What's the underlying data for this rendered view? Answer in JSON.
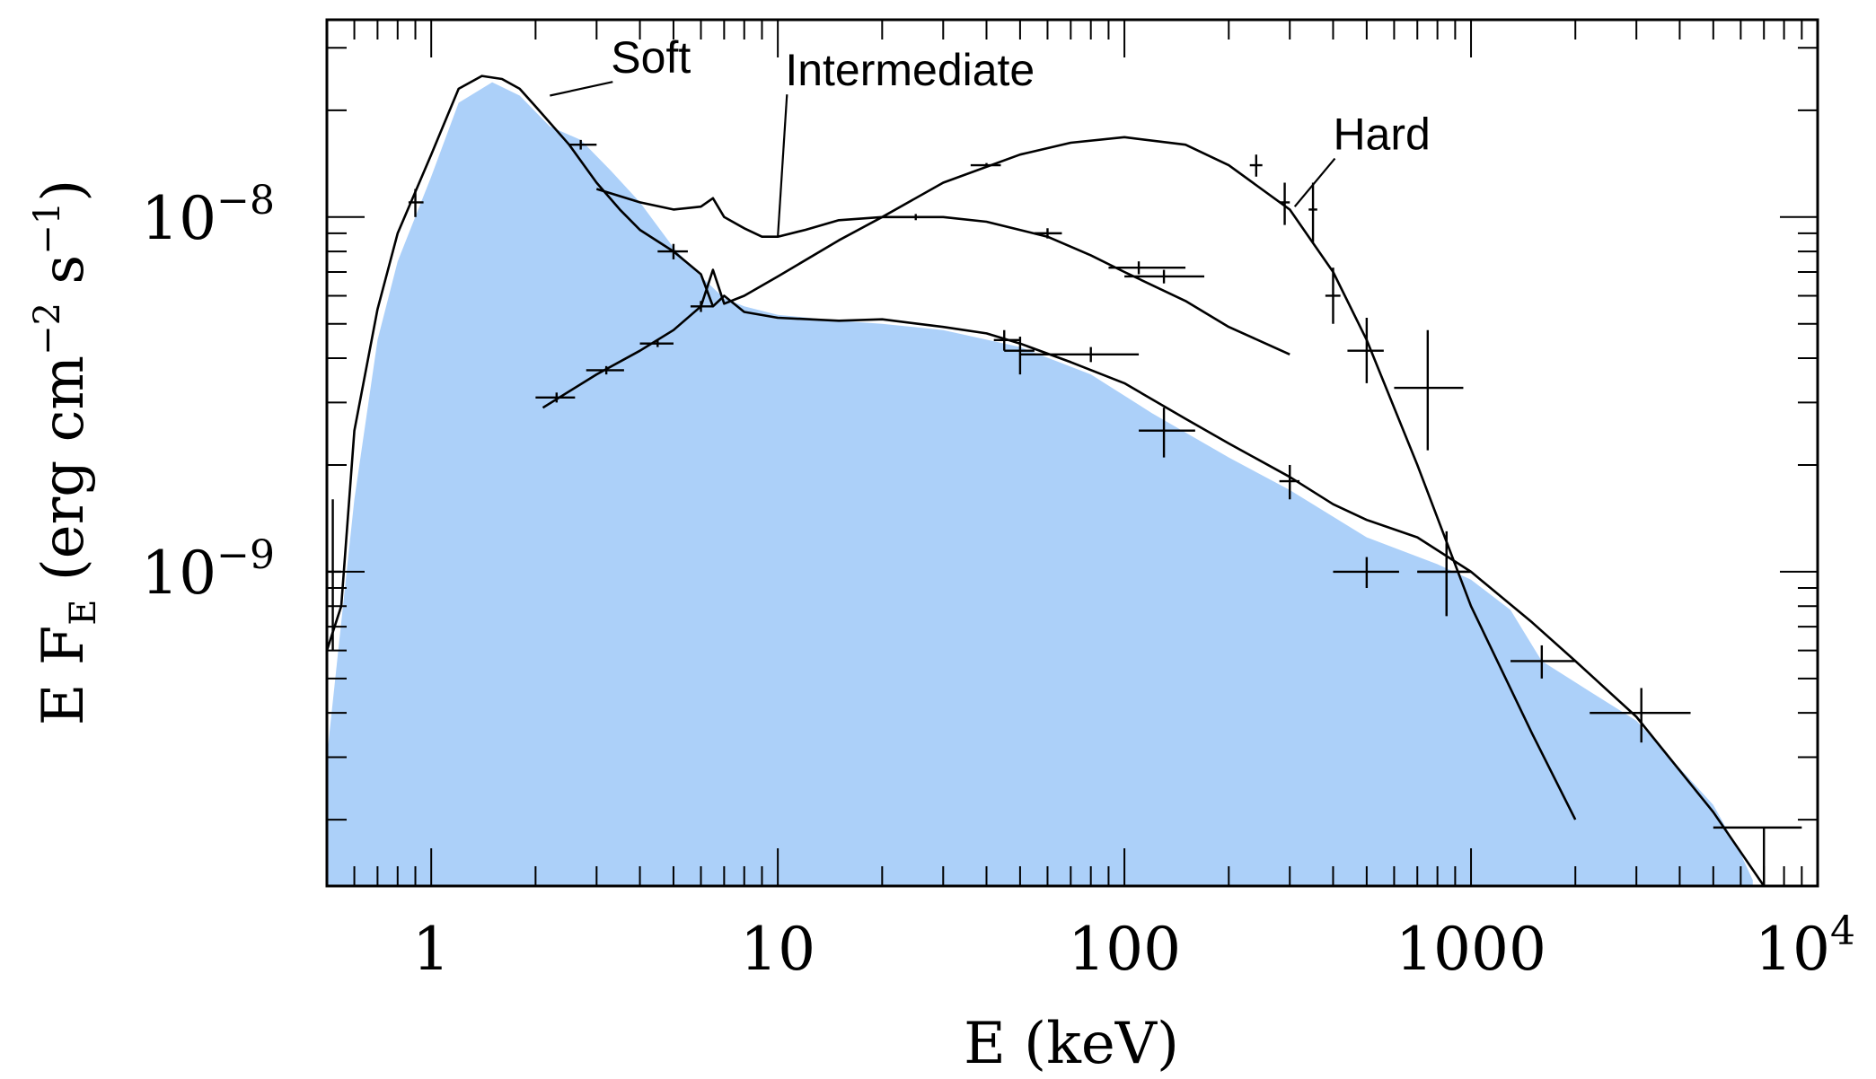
{
  "chart_data": {
    "type": "line",
    "xlabel": "E (keV)",
    "ylabel": "E F_E (erg cm^-2 s^-1)",
    "x_scale": "log",
    "y_scale": "log",
    "xlim": [
      0.5,
      10000
    ],
    "ylim": [
      1.3e-10,
      3.6e-08
    ],
    "grid": false,
    "x_ticks": [
      {
        "value": 1,
        "label": "1"
      },
      {
        "value": 10,
        "label": "10"
      },
      {
        "value": 100,
        "label": "100"
      },
      {
        "value": 1000,
        "label": "1000"
      },
      {
        "value": 10000,
        "base": "10",
        "exp": "4"
      }
    ],
    "y_ticks": [
      {
        "value": 1e-09,
        "base": "10",
        "exp": "−9"
      },
      {
        "value": 1e-08,
        "base": "10",
        "exp": "−8"
      }
    ],
    "fill_color": "#acd0f9",
    "line_color": "#000000",
    "reference_band": {
      "x": [
        0.5,
        0.6,
        0.7,
        0.8,
        1.0,
        1.2,
        1.5,
        1.8,
        2.2,
        2.7,
        3.3,
        4.0,
        5.0,
        6.0,
        7.0,
        8.0,
        10,
        15,
        20,
        30,
        50,
        80,
        120,
        200,
        300,
        500,
        800,
        1000,
        1300,
        1600,
        2200,
        3000,
        5000,
        6000,
        6500
      ],
      "y": [
        3e-10,
        1.6e-09,
        4.5e-09,
        7.5e-09,
        1.3e-08,
        2.1e-08,
        2.4e-08,
        2.2e-08,
        1.8e-08,
        1.65e-08,
        1.35e-08,
        1.1e-08,
        8.2e-09,
        6.8e-09,
        5.9e-09,
        5.6e-09,
        5.3e-09,
        5.1e-09,
        5e-09,
        4.8e-09,
        4.3e-09,
        3.6e-09,
        2.8e-09,
        2.1e-09,
        1.7e-09,
        1.25e-09,
        1.05e-09,
        9.5e-10,
        7.8e-10,
        5.6e-10,
        4.6e-10,
        3.8e-10,
        2.2e-10,
        1.6e-10,
        1.35e-10
      ]
    },
    "series": [
      {
        "name": "Soft",
        "model": {
          "x": [
            0.5,
            0.55,
            0.6,
            0.7,
            0.8,
            1.0,
            1.2,
            1.4,
            1.6,
            1.8,
            2.0,
            2.5,
            3.0,
            3.5,
            4.0,
            5.0,
            6.0,
            6.5,
            7.0,
            8.0,
            10,
            15,
            20,
            30,
            40,
            50,
            70,
            100,
            150,
            200,
            300,
            400,
            500,
            700,
            1000,
            1500,
            2000,
            3000,
            5000,
            7000
          ],
          "y": [
            6e-10,
            8e-10,
            2.5e-09,
            5.5e-09,
            9e-09,
            1.5e-08,
            2.3e-08,
            2.5e-08,
            2.45e-08,
            2.3e-08,
            2.05e-08,
            1.6e-08,
            1.25e-08,
            1.05e-08,
            9.2e-09,
            8e-09,
            6.9e-09,
            5.6e-09,
            6e-09,
            5.4e-09,
            5.2e-09,
            5.1e-09,
            5.15e-09,
            4.9e-09,
            4.7e-09,
            4.4e-09,
            3.9e-09,
            3.4e-09,
            2.7e-09,
            2.3e-09,
            1.85e-09,
            1.55e-09,
            1.4e-09,
            1.25e-09,
            1e-09,
            7.2e-10,
            5.6e-10,
            3.9e-10,
            2.1e-10,
            1.3e-10
          ]
        },
        "points": [
          {
            "x": 0.52,
            "y": 1e-09,
            "xlo": 0.5,
            "xhi": 0.55,
            "ylo": 6e-10,
            "yhi": 1.6e-09
          },
          {
            "x": 0.9,
            "y": 1.1e-08,
            "xlo": 0.86,
            "xhi": 0.95,
            "ylo": 1e-08,
            "yhi": 1.2e-08
          },
          {
            "x": 2.7,
            "y": 1.6e-08,
            "xlo": 2.5,
            "xhi": 3.0,
            "ylo": 1.55e-08,
            "yhi": 1.65e-08
          },
          {
            "x": 5.0,
            "y": 8e-09,
            "xlo": 4.5,
            "xhi": 5.5,
            "ylo": 7.6e-09,
            "yhi": 8.4e-09
          },
          {
            "x": 45,
            "y": 4.5e-09,
            "xlo": 42,
            "xhi": 50,
            "ylo": 4.2e-09,
            "yhi": 4.8e-09
          },
          {
            "x": 50,
            "y": 4.2e-09,
            "xlo": 45,
            "xhi": 55,
            "ylo": 3.6e-09,
            "yhi": 4.6e-09
          },
          {
            "x": 80,
            "y": 4.1e-09,
            "xlo": 50,
            "xhi": 110,
            "ylo": 3.9e-09,
            "yhi": 4.3e-09
          },
          {
            "x": 130,
            "y": 2.5e-09,
            "xlo": 110,
            "xhi": 160,
            "ylo": 2.1e-09,
            "yhi": 2.9e-09
          },
          {
            "x": 300,
            "y": 1.8e-09,
            "xlo": 280,
            "xhi": 320,
            "ylo": 1.6e-09,
            "yhi": 2e-09
          },
          {
            "x": 500,
            "y": 1e-09,
            "xlo": 400,
            "xhi": 620,
            "ylo": 9e-10,
            "yhi": 1.1e-09
          },
          {
            "x": 850,
            "y": 1e-09,
            "xlo": 700,
            "xhi": 1000,
            "ylo": 7.5e-10,
            "yhi": 1.2e-09
          },
          {
            "x": 1600,
            "y": 5.6e-10,
            "xlo": 1300,
            "xhi": 2000,
            "ylo": 5e-10,
            "yhi": 6.2e-10
          },
          {
            "x": 3100,
            "y": 4e-10,
            "xlo": 2200,
            "xhi": 4300,
            "ylo": 3.3e-10,
            "yhi": 4.7e-10
          },
          {
            "x": 7000,
            "y": 1.9e-10,
            "xlo": 5000,
            "xhi": 9000,
            "ylo": 1.3e-10,
            "yhi": 1.9e-10
          }
        ]
      },
      {
        "name": "Intermediate",
        "model": {
          "x": [
            3.0,
            4.0,
            5.0,
            6.0,
            6.5,
            7.0,
            8.0,
            9.0,
            10,
            12,
            15,
            20,
            30,
            40,
            60,
            80,
            100,
            150,
            200,
            300
          ],
          "y": [
            1.2e-08,
            1.1e-08,
            1.05e-08,
            1.07e-08,
            1.13e-08,
            1e-08,
            9.3e-09,
            8.8e-09,
            8.8e-09,
            9.2e-09,
            9.8e-09,
            1e-08,
            1e-08,
            9.7e-09,
            8.8e-09,
            7.8e-09,
            7e-09,
            5.8e-09,
            4.9e-09,
            4.1e-09
          ]
        },
        "points": [
          {
            "x": 25,
            "y": 1e-08,
            "xlo": 22,
            "xhi": 28,
            "ylo": 9.8e-09,
            "yhi": 1.02e-08
          },
          {
            "x": 60,
            "y": 9e-09,
            "xlo": 55,
            "xhi": 66,
            "ylo": 8.7e-09,
            "yhi": 9.3e-09
          },
          {
            "x": 110,
            "y": 7.2e-09,
            "xlo": 90,
            "xhi": 150,
            "ylo": 6.9e-09,
            "yhi": 7.5e-09
          },
          {
            "x": 130,
            "y": 6.8e-09,
            "xlo": 100,
            "xhi": 170,
            "ylo": 6.5e-09,
            "yhi": 7.1e-09
          }
        ]
      },
      {
        "name": "Hard",
        "model": {
          "x": [
            2.1,
            3.0,
            4.0,
            5.0,
            6.0,
            6.5,
            7.0,
            8.0,
            10,
            15,
            20,
            30,
            50,
            70,
            100,
            150,
            200,
            300,
            400,
            500,
            700,
            1000,
            1500,
            2000
          ],
          "y": [
            2.9e-09,
            3.6e-09,
            4.2e-09,
            4.8e-09,
            5.6e-09,
            7.1e-09,
            5.7e-09,
            6e-09,
            6.8e-09,
            8.6e-09,
            1e-08,
            1.25e-08,
            1.5e-08,
            1.62e-08,
            1.68e-08,
            1.6e-08,
            1.4e-08,
            1.05e-08,
            7e-09,
            4.5e-09,
            2e-09,
            8e-10,
            3.5e-10,
            2e-10
          ]
        },
        "points": [
          {
            "x": 2.3,
            "y": 3.1e-09,
            "xlo": 2.0,
            "xhi": 2.6,
            "ylo": 3e-09,
            "yhi": 3.2e-09
          },
          {
            "x": 3.2,
            "y": 3.7e-09,
            "xlo": 2.8,
            "xhi": 3.6,
            "ylo": 3.6e-09,
            "yhi": 3.8e-09
          },
          {
            "x": 4.5,
            "y": 4.4e-09,
            "xlo": 4.0,
            "xhi": 5.0,
            "ylo": 4.3e-09,
            "yhi": 4.5e-09
          },
          {
            "x": 6.0,
            "y": 5.6e-09,
            "xlo": 5.6,
            "xhi": 6.5,
            "ylo": 5.4e-09,
            "yhi": 5.8e-09
          },
          {
            "x": 40,
            "y": 1.4e-08,
            "xlo": 36,
            "xhi": 44,
            "ylo": 1.38e-08,
            "yhi": 1.42e-08
          },
          {
            "x": 240,
            "y": 1.4e-08,
            "xlo": 230,
            "xhi": 250,
            "ylo": 1.3e-08,
            "yhi": 1.5e-08
          },
          {
            "x": 290,
            "y": 1.1e-08,
            "xlo": 280,
            "xhi": 300,
            "ylo": 9.5e-09,
            "yhi": 1.25e-08
          },
          {
            "x": 350,
            "y": 1.05e-08,
            "xlo": 340,
            "xhi": 360,
            "ylo": 8.5e-09,
            "yhi": 1.25e-08
          },
          {
            "x": 400,
            "y": 6e-09,
            "xlo": 380,
            "xhi": 420,
            "ylo": 5e-09,
            "yhi": 7.2e-09
          },
          {
            "x": 500,
            "y": 4.2e-09,
            "xlo": 440,
            "xhi": 560,
            "ylo": 3.4e-09,
            "yhi": 5.2e-09
          },
          {
            "x": 750,
            "y": 3.3e-09,
            "xlo": 600,
            "xhi": 950,
            "ylo": 2.2e-09,
            "yhi": 4.8e-09
          },
          {
            "x": 850,
            "y": 1e-09,
            "xlo": 700,
            "xhi": 1000,
            "ylo": 7.5e-10,
            "yhi": 1.3e-09
          }
        ]
      }
    ],
    "annotations": [
      {
        "text": "Soft",
        "x": 3.3,
        "y": 2.55e-08,
        "lx": 2.2,
        "ly": 2.2e-08
      },
      {
        "text": "Intermediate",
        "x": 10.5,
        "y": 2.35e-08,
        "lx": 10,
        "ly": 8.8e-09
      },
      {
        "text": "Hard",
        "x": 400,
        "y": 1.55e-08,
        "lx": 310,
        "ly": 1.07e-08
      }
    ]
  }
}
